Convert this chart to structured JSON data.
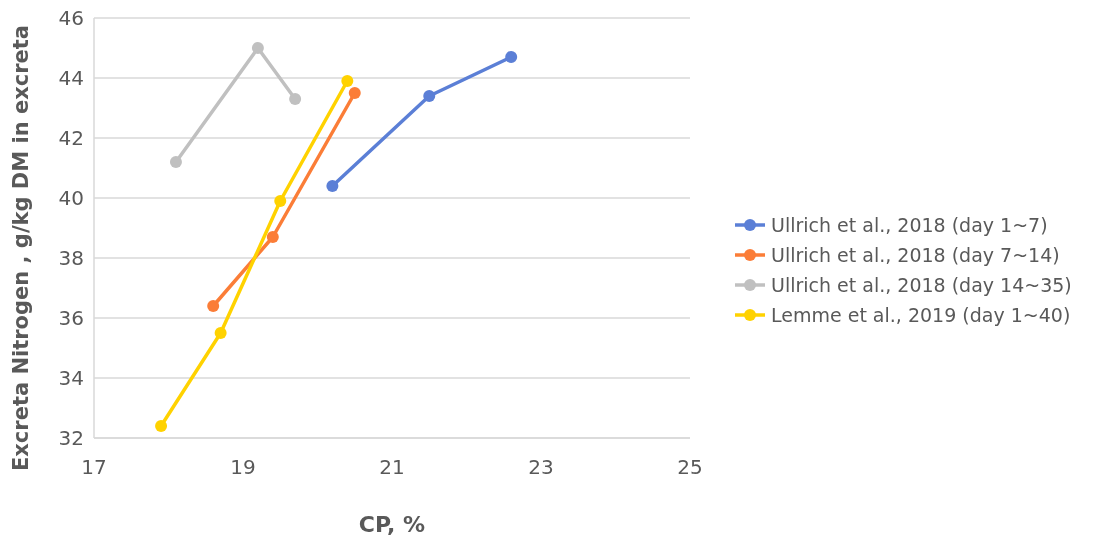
{
  "chart_data": {
    "type": "line",
    "xlabel": "CP, %",
    "ylabel": "Excreta Nitrogen , g/kg DM in excreta",
    "xlim": [
      17,
      25
    ],
    "xticks": [
      17,
      19,
      21,
      23,
      25
    ],
    "ylim": [
      32,
      46
    ],
    "yticks": [
      32,
      34,
      36,
      38,
      40,
      42,
      44,
      46
    ],
    "grid": "y",
    "legend": "right",
    "marker": "circle",
    "line_style": "solid",
    "series": [
      {
        "name": "Ullrich et al., 2018 (day 1~7)",
        "color": "#5b7fd6",
        "x": [
          20.2,
          21.5,
          22.6
        ],
        "values": [
          40.4,
          43.4,
          44.7
        ]
      },
      {
        "name": "Ullrich et al., 2018 (day 7~14)",
        "color": "#fb7d37",
        "x": [
          18.6,
          19.4,
          20.5
        ],
        "values": [
          36.4,
          38.7,
          43.5
        ]
      },
      {
        "name": "Ullrich et al., 2018 (day 14~35)",
        "color": "#c0c0c0",
        "x": [
          18.1,
          19.2,
          19.7
        ],
        "values": [
          41.2,
          45,
          43.3
        ]
      },
      {
        "name": "Lemme et al., 2019 (day 1~40)",
        "color": "#ffd200",
        "x": [
          17.9,
          18.7,
          19.5,
          20.4
        ],
        "values": [
          32.4,
          35.5,
          39.9,
          43.9
        ]
      }
    ]
  }
}
